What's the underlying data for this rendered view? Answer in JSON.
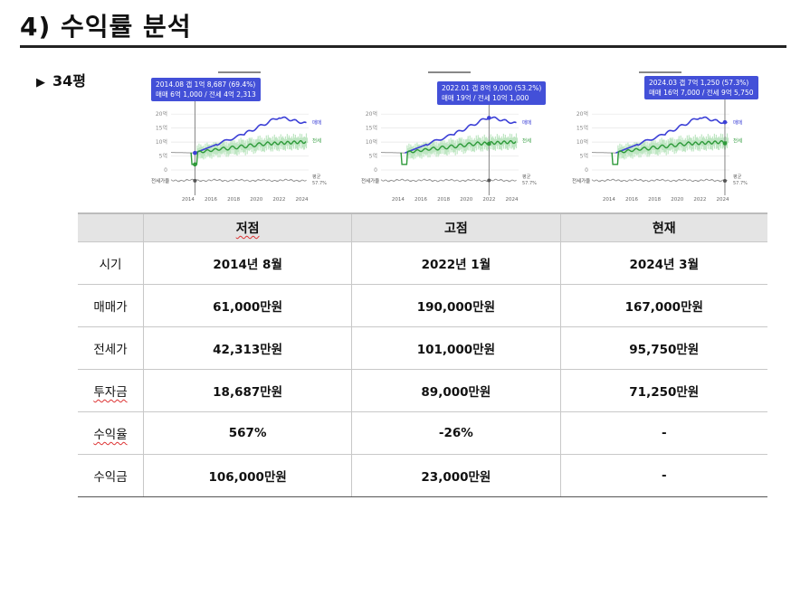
{
  "title": "4) 수익률 분석",
  "subtitle": "34평",
  "charts": [
    {
      "tooltip_line1": "2014.08  갭 1억 8,687 (69.4%)",
      "tooltip_line2": "매매 6억 1,000 / 전세 4억 2,313",
      "y_ticks": [
        "20억",
        "15억",
        "10억",
        "5억",
        "0"
      ],
      "x_ticks": [
        "2014",
        "2016",
        "2018",
        "2020",
        "2022",
        "2024"
      ],
      "series_label_sale": "매매",
      "series_label_jeonse": "전세",
      "ratio_label": "전세가율",
      "avg_label": "평균",
      "avg_value": "57.7%",
      "marker_year": 2014.6
    },
    {
      "tooltip_line1": "2022.01  갭 8억 9,000 (53.2%)",
      "tooltip_line2": "매매 19억 / 전세 10억 1,000",
      "y_ticks": [
        "20억",
        "15억",
        "10억",
        "5억",
        "0"
      ],
      "x_ticks": [
        "2014",
        "2016",
        "2018",
        "2020",
        "2022",
        "2024"
      ],
      "series_label_sale": "매매",
      "series_label_jeonse": "전세",
      "ratio_label": "전세가율",
      "avg_label": "평균",
      "avg_value": "57.7%",
      "marker_year": 2022.0
    },
    {
      "tooltip_line1": "2024.03  갭 7억 1,250 (57.3%)",
      "tooltip_line2": "매매 16억 7,000 / 전세 9억 5,750",
      "y_ticks": [
        "20억",
        "15억",
        "10억",
        "5억",
        "0"
      ],
      "x_ticks": [
        "2014",
        "2016",
        "2018",
        "2020",
        "2022",
        "2024"
      ],
      "series_label_sale": "매매",
      "series_label_jeonse": "전세",
      "ratio_label": "전세가율",
      "avg_label": "평균",
      "avg_value": "57.7%",
      "marker_year": 2024.2
    }
  ],
  "chart_style": {
    "sale_color": "#3b3fd6",
    "jeonse_color": "#2e9a3a",
    "jeonse_band_color": "#bfe6c3",
    "ratio_color": "#8a8a8a",
    "tooltip_color": "#4350d8"
  },
  "table": {
    "headers": [
      "",
      "저점",
      "고점",
      "현재"
    ],
    "rows": [
      {
        "label": "시기",
        "values": [
          "2014년 8월",
          "2022년 1월",
          "2024년 3월"
        ]
      },
      {
        "label": "매매가",
        "values": [
          "61,000만원",
          "190,000만원",
          "167,000만원"
        ]
      },
      {
        "label": "전세가",
        "values": [
          "42,313만원",
          "101,000만원",
          "95,750만원"
        ]
      },
      {
        "label": "투자금",
        "values": [
          "18,687만원",
          "89,000만원",
          "71,250만원"
        ]
      },
      {
        "label": "수익율",
        "values": [
          "567%",
          "-26%",
          "-"
        ]
      },
      {
        "label": "수익금",
        "values": [
          "106,000만원",
          "23,000만원",
          "-"
        ]
      }
    ]
  }
}
